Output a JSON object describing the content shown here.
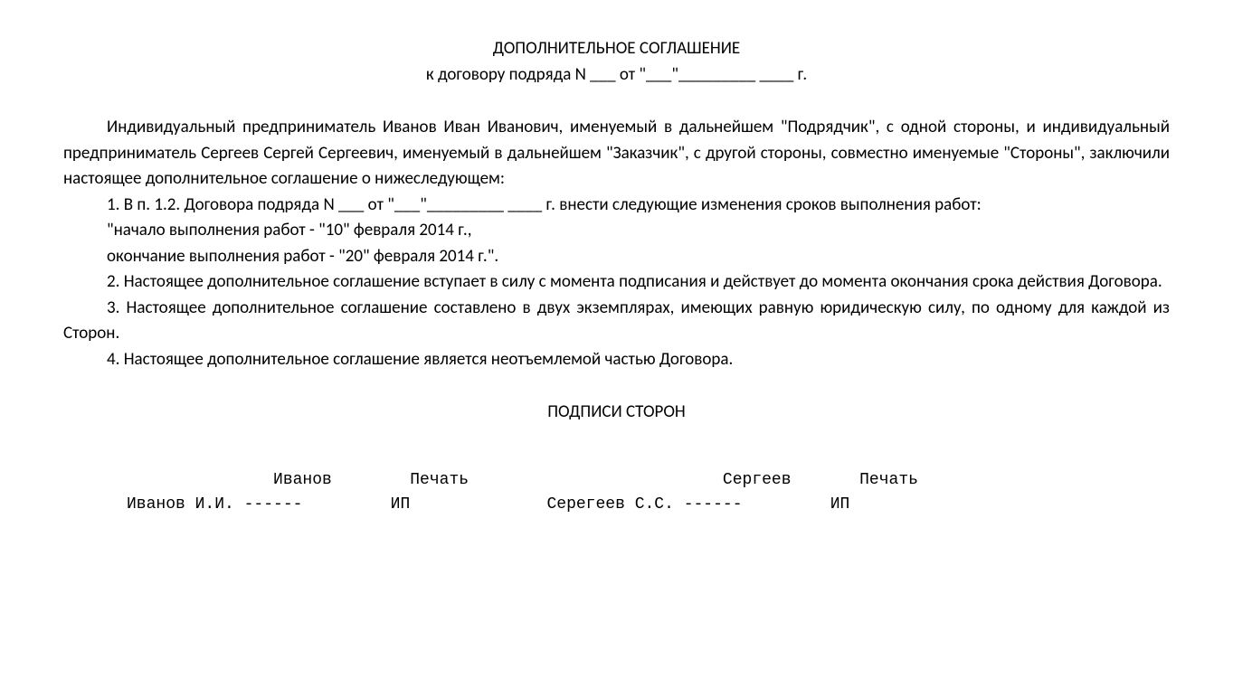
{
  "title": {
    "line1": "ДОПОЛНИТЕЛЬНОЕ СОГЛАШЕНИЕ",
    "line2": "к договору подряда N ___ от \"___\"_________ ____ г."
  },
  "preamble": "Индивидуальный предприниматель Иванов Иван Иванович, именуемый в дальнейшем \"Подрядчик\", с одной стороны, и индивидуальный предприниматель Сергеев Сергей Сергеевич, именуемый в дальнейшем \"Заказчик\", с другой стороны, совместно именуемые \"Стороны\", заключили настоящее дополнительное соглашение о нижеследующем:",
  "clauses": {
    "c1": "1. В п. 1.2. Договора подряда N ___ от \"___\"_________ ____ г. внести следующие изменения сроков выполнения работ:",
    "c1a": "\"начало выполнения работ - \"10\" февраля 2014 г.,",
    "c1b": "окончание выполнения работ - \"20\" февраля 2014 г.\".",
    "c2": "2. Настоящее дополнительное соглашение вступает в силу с момента подписания и действует до момента окончания срока действия Договора.",
    "c3": "3. Настоящее дополнительное соглашение составлено в двух экземплярах, имеющих равную юридическую силу, по одному для каждой из Сторон.",
    "c4": "4. Настоящее дополнительное соглашение является неотъемлемой частью Договора."
  },
  "signatures": {
    "title": "ПОДПИСИ СТОРОН",
    "row1": "               Иванов        Печать                          Сергеев       Печать",
    "row2": "Иванов И.И. ------         ИП              Серегеев С.С. ------         ИП"
  }
}
